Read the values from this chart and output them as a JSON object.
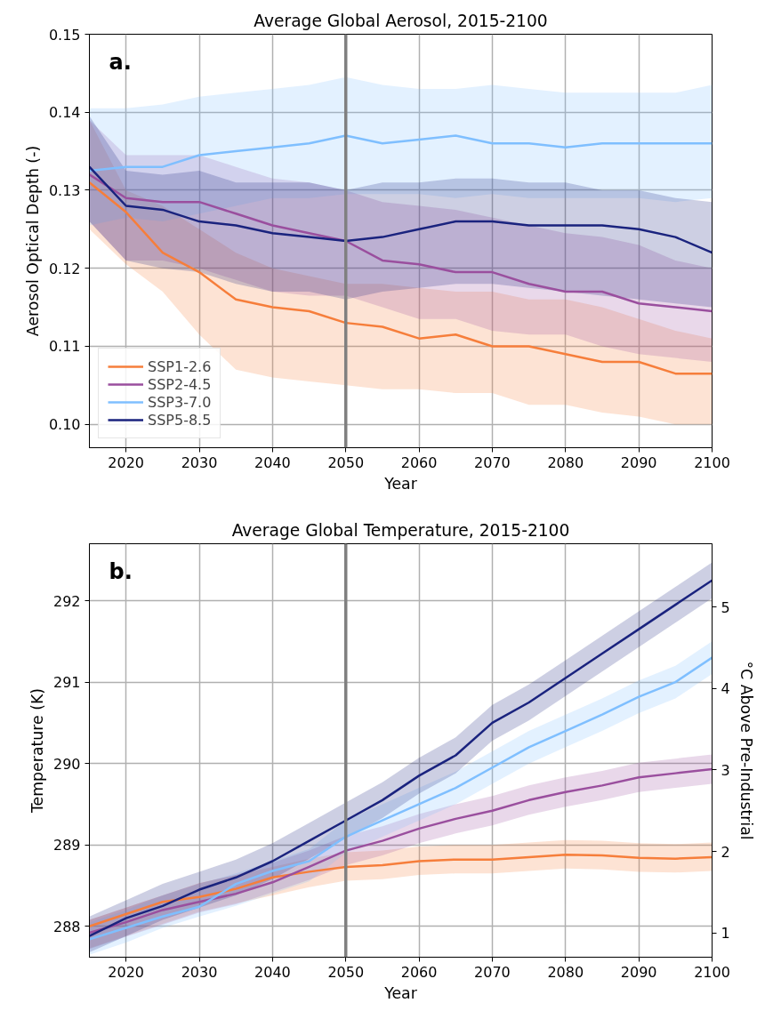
{
  "chart_data": [
    {
      "type": "line",
      "title": "Average Global Aerosol, 2015-2100",
      "xlabel": "Year",
      "ylabel": "Aerosol Optical Depth (-)",
      "annotations": [
        "a."
      ],
      "x": [
        2015,
        2020,
        2025,
        2030,
        2035,
        2040,
        2045,
        2050,
        2055,
        2060,
        2065,
        2070,
        2075,
        2080,
        2085,
        2090,
        2095,
        2100
      ],
      "xlim": [
        2015,
        2100
      ],
      "xticks": [
        2020,
        2030,
        2040,
        2050,
        2060,
        2070,
        2080,
        2090,
        2100
      ],
      "ylim": [
        0.097,
        0.15
      ],
      "yticks": [
        {
          "value": 0.1,
          "label": "0.10"
        },
        {
          "value": 0.11,
          "label": "0.11"
        },
        {
          "value": 0.12,
          "label": "0.12"
        },
        {
          "value": 0.13,
          "label": "0.13"
        },
        {
          "value": 0.14,
          "label": "0.14"
        },
        {
          "value": 0.15,
          "label": "0.15"
        }
      ],
      "grid": true,
      "legend": "bottom left",
      "line_style": "solid",
      "marker": "none",
      "ref_lines": [
        {
          "axis": "x",
          "value": 2050,
          "color": "#808080"
        }
      ],
      "series": [
        {
          "name": "SSP1-2.6",
          "color": "#f67e3b",
          "values": [
            0.131,
            0.1272,
            0.122,
            0.1195,
            0.116,
            0.115,
            0.1145,
            0.113,
            0.1125,
            0.111,
            0.1115,
            0.11,
            0.11,
            0.109,
            0.108,
            0.108,
            0.1065,
            0.1065
          ],
          "lower": [
            0.125,
            0.1205,
            0.117,
            0.1115,
            0.107,
            0.106,
            0.1055,
            0.105,
            0.1045,
            0.1045,
            0.104,
            0.104,
            0.1025,
            0.1025,
            0.1015,
            0.101,
            0.1,
            0.1
          ],
          "upper": [
            0.139,
            0.13,
            0.128,
            0.125,
            0.122,
            0.12,
            0.119,
            0.118,
            0.118,
            0.1175,
            0.117,
            0.117,
            0.116,
            0.116,
            0.115,
            0.1135,
            0.112,
            0.111
          ]
        },
        {
          "name": "SSP2-4.5",
          "color": "#9a4f9e",
          "values": [
            0.132,
            0.129,
            0.1285,
            0.1285,
            0.127,
            0.1255,
            0.1245,
            0.1235,
            0.121,
            0.1205,
            0.1195,
            0.1195,
            0.118,
            0.117,
            0.117,
            0.1155,
            0.115,
            0.1145
          ],
          "lower": [
            0.126,
            0.121,
            0.121,
            0.12,
            0.1185,
            0.117,
            0.1165,
            0.1165,
            0.115,
            0.1135,
            0.1135,
            0.112,
            0.1115,
            0.1115,
            0.11,
            0.109,
            0.1085,
            0.108
          ],
          "upper": [
            0.139,
            0.1345,
            0.1345,
            0.1345,
            0.133,
            0.1315,
            0.131,
            0.13,
            0.1285,
            0.128,
            0.1275,
            0.1265,
            0.1255,
            0.1245,
            0.124,
            0.123,
            0.121,
            0.12
          ]
        },
        {
          "name": "SSP3-7.0",
          "color": "#7fbfff",
          "values": [
            0.1325,
            0.133,
            0.133,
            0.1345,
            0.135,
            0.1355,
            0.136,
            0.137,
            0.136,
            0.1365,
            0.137,
            0.136,
            0.136,
            0.1355,
            0.136,
            0.136,
            0.136,
            0.136
          ],
          "lower": [
            0.1255,
            0.1265,
            0.126,
            0.127,
            0.128,
            0.129,
            0.129,
            0.1295,
            0.1295,
            0.1295,
            0.129,
            0.1295,
            0.129,
            0.129,
            0.129,
            0.129,
            0.1285,
            0.129
          ],
          "upper": [
            0.1405,
            0.1405,
            0.141,
            0.142,
            0.1425,
            0.143,
            0.1435,
            0.1445,
            0.1435,
            0.143,
            0.143,
            0.1435,
            0.143,
            0.1425,
            0.1425,
            0.1425,
            0.1425,
            0.1435
          ]
        },
        {
          "name": "SSP5-8.5",
          "color": "#1a237e",
          "values": [
            0.133,
            0.128,
            0.1275,
            0.126,
            0.1255,
            0.1245,
            0.124,
            0.1235,
            0.124,
            0.125,
            0.126,
            0.126,
            0.1255,
            0.1255,
            0.1255,
            0.125,
            0.124,
            0.122
          ],
          "lower": [
            0.126,
            0.121,
            0.12,
            0.1195,
            0.118,
            0.117,
            0.117,
            0.116,
            0.117,
            0.1175,
            0.118,
            0.118,
            0.1175,
            0.117,
            0.1165,
            0.116,
            0.1155,
            0.115
          ],
          "upper": [
            0.1395,
            0.1325,
            0.132,
            0.1325,
            0.131,
            0.131,
            0.131,
            0.13,
            0.131,
            0.131,
            0.1315,
            0.1315,
            0.131,
            0.131,
            0.13,
            0.13,
            0.129,
            0.1285
          ]
        }
      ]
    },
    {
      "type": "line",
      "title": "Average Global Temperature, 2015-2100",
      "xlabel": "Year",
      "ylabel": "Temperature (K)",
      "y2label": "°C Above Pre-Industrial",
      "annotations": [
        "b."
      ],
      "x": [
        2015,
        2020,
        2025,
        2030,
        2035,
        2040,
        2045,
        2050,
        2055,
        2060,
        2065,
        2070,
        2075,
        2080,
        2085,
        2090,
        2095,
        2100
      ],
      "xlim": [
        2015,
        2100
      ],
      "xticks": [
        2020,
        2030,
        2040,
        2050,
        2060,
        2070,
        2080,
        2090,
        2100
      ],
      "ylim": [
        287.62,
        292.7
      ],
      "yticks": [
        288,
        289,
        290,
        291,
        292
      ],
      "y2lim": [
        0.7,
        5.78
      ],
      "y2ticks": [
        1,
        2,
        3,
        4,
        5
      ],
      "grid": true,
      "line_style": "solid",
      "marker": "none",
      "ref_lines": [
        {
          "axis": "x",
          "value": 2050,
          "color": "#808080"
        }
      ],
      "series": [
        {
          "color": "#f67e3b",
          "values": [
            288.0,
            288.15,
            288.3,
            288.36,
            288.46,
            288.6,
            288.67,
            288.73,
            288.75,
            288.8,
            288.82,
            288.82,
            288.85,
            288.88,
            288.87,
            288.84,
            288.83,
            288.85
          ],
          "lower": [
            287.73,
            287.88,
            288.03,
            288.18,
            288.28,
            288.38,
            288.48,
            288.56,
            288.58,
            288.63,
            288.65,
            288.65,
            288.68,
            288.71,
            288.7,
            288.67,
            288.66,
            288.68
          ],
          "upper": [
            288.08,
            288.23,
            288.38,
            288.53,
            288.63,
            288.73,
            288.83,
            288.91,
            288.93,
            288.98,
            289.0,
            289.0,
            289.03,
            289.06,
            289.05,
            289.02,
            289.01,
            289.03
          ]
        },
        {
          "color": "#9a4f9e",
          "values": [
            287.92,
            288.05,
            288.2,
            288.3,
            288.4,
            288.54,
            288.73,
            288.93,
            289.05,
            289.2,
            289.32,
            289.42,
            289.55,
            289.65,
            289.73,
            289.83,
            289.88,
            289.93
          ],
          "lower": [
            287.72,
            287.87,
            288.02,
            288.17,
            288.27,
            288.42,
            288.57,
            288.75,
            288.87,
            289.02,
            289.14,
            289.24,
            289.37,
            289.47,
            289.55,
            289.65,
            289.7,
            289.75
          ],
          "upper": [
            288.08,
            288.23,
            288.38,
            288.53,
            288.63,
            288.78,
            288.93,
            289.11,
            289.23,
            289.38,
            289.5,
            289.6,
            289.73,
            289.83,
            289.91,
            290.01,
            290.06,
            290.11
          ]
        },
        {
          "color": "#7fbfff",
          "values": [
            287.84,
            287.98,
            288.12,
            288.24,
            288.52,
            288.68,
            288.8,
            289.1,
            289.3,
            289.5,
            289.7,
            289.95,
            290.2,
            290.4,
            290.6,
            290.82,
            291.0,
            291.3
          ],
          "lower": [
            287.65,
            287.8,
            287.98,
            288.12,
            288.25,
            288.4,
            288.55,
            288.9,
            289.1,
            289.3,
            289.5,
            289.75,
            290.0,
            290.2,
            290.4,
            290.62,
            290.8,
            291.1
          ],
          "upper": [
            288.05,
            288.2,
            288.38,
            288.52,
            288.65,
            288.8,
            288.95,
            289.3,
            289.5,
            289.7,
            289.9,
            290.15,
            290.4,
            290.6,
            290.8,
            291.02,
            291.2,
            291.5
          ]
        },
        {
          "color": "#1a237e",
          "values": [
            287.88,
            288.1,
            288.25,
            288.45,
            288.6,
            288.8,
            289.05,
            289.3,
            289.55,
            289.85,
            290.1,
            290.5,
            290.75,
            291.05,
            291.35,
            291.65,
            291.95,
            292.25
          ],
          "lower": [
            287.68,
            287.88,
            288.08,
            288.23,
            288.38,
            288.58,
            288.83,
            289.08,
            289.33,
            289.63,
            289.88,
            290.28,
            290.53,
            290.83,
            291.13,
            291.43,
            291.73,
            292.03
          ],
          "upper": [
            288.12,
            288.32,
            288.52,
            288.67,
            288.82,
            289.02,
            289.27,
            289.52,
            289.77,
            290.07,
            290.32,
            290.72,
            290.97,
            291.27,
            291.57,
            291.87,
            292.17,
            292.47
          ]
        }
      ]
    }
  ]
}
